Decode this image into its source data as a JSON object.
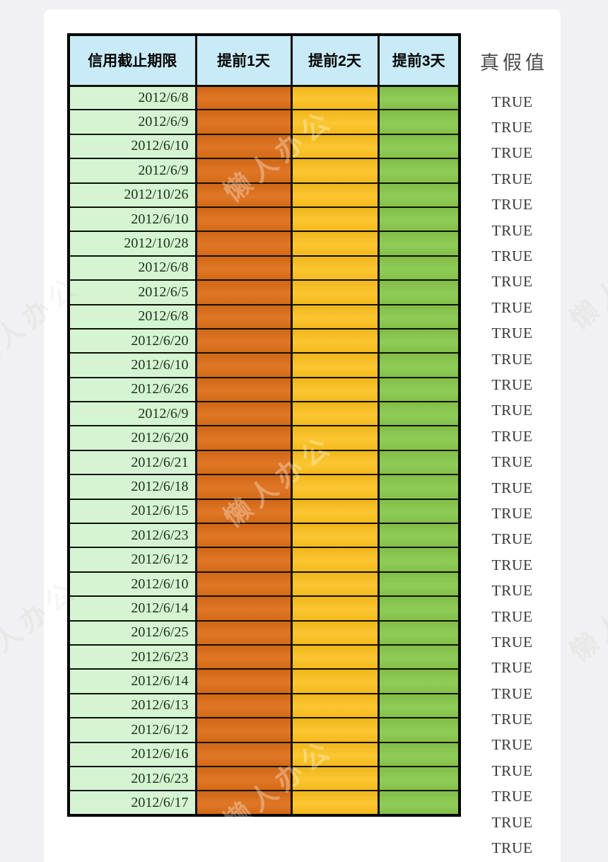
{
  "page": {
    "background_color": "#f1f1f3",
    "panel_color": "#ffffff"
  },
  "watermark": {
    "text": "懒人办公"
  },
  "colors": {
    "header_bg": "#c8ebf7",
    "date_col_bg": "#d5f5d2",
    "advance1_bg": "#dd6d16",
    "advance2_bg": "#fcc01c",
    "advance3_bg": "#87c74a",
    "grid_border": "#101008",
    "date_text": "#17321c",
    "truth_text": "#383838",
    "outside_header_text": "#4a4a4a"
  },
  "table": {
    "headers": [
      {
        "label": "信用截止期限"
      },
      {
        "label": "提前1天"
      },
      {
        "label": "提前2天"
      },
      {
        "label": "提前3天"
      }
    ],
    "outside_header": "真假值",
    "rows": [
      {
        "date": "2012/6/8",
        "advance1": "",
        "advance2": "",
        "advance3": "",
        "truth": "TRUE"
      },
      {
        "date": "2012/6/9",
        "advance1": "",
        "advance2": "",
        "advance3": "",
        "truth": "TRUE"
      },
      {
        "date": "2012/6/10",
        "advance1": "",
        "advance2": "",
        "advance3": "",
        "truth": "TRUE"
      },
      {
        "date": "2012/6/9",
        "advance1": "",
        "advance2": "",
        "advance3": "",
        "truth": "TRUE"
      },
      {
        "date": "2012/10/26",
        "advance1": "",
        "advance2": "",
        "advance3": "",
        "truth": "TRUE"
      },
      {
        "date": "2012/6/10",
        "advance1": "",
        "advance2": "",
        "advance3": "",
        "truth": "TRUE"
      },
      {
        "date": "2012/10/28",
        "advance1": "",
        "advance2": "",
        "advance3": "",
        "truth": "TRUE"
      },
      {
        "date": "2012/6/8",
        "advance1": "",
        "advance2": "",
        "advance3": "",
        "truth": "TRUE"
      },
      {
        "date": "2012/6/5",
        "advance1": "",
        "advance2": "",
        "advance3": "",
        "truth": "TRUE"
      },
      {
        "date": "2012/6/8",
        "advance1": "",
        "advance2": "",
        "advance3": "",
        "truth": "TRUE"
      },
      {
        "date": "2012/6/20",
        "advance1": "",
        "advance2": "",
        "advance3": "",
        "truth": "TRUE"
      },
      {
        "date": "2012/6/10",
        "advance1": "",
        "advance2": "",
        "advance3": "",
        "truth": "TRUE"
      },
      {
        "date": "2012/6/26",
        "advance1": "",
        "advance2": "",
        "advance3": "",
        "truth": "TRUE"
      },
      {
        "date": "2012/6/9",
        "advance1": "",
        "advance2": "",
        "advance3": "",
        "truth": "TRUE"
      },
      {
        "date": "2012/6/20",
        "advance1": "",
        "advance2": "",
        "advance3": "",
        "truth": "TRUE"
      },
      {
        "date": "2012/6/21",
        "advance1": "",
        "advance2": "",
        "advance3": "",
        "truth": "TRUE"
      },
      {
        "date": "2012/6/18",
        "advance1": "",
        "advance2": "",
        "advance3": "",
        "truth": "TRUE"
      },
      {
        "date": "2012/6/15",
        "advance1": "",
        "advance2": "",
        "advance3": "",
        "truth": "TRUE"
      },
      {
        "date": "2012/6/23",
        "advance1": "",
        "advance2": "",
        "advance3": "",
        "truth": "TRUE"
      },
      {
        "date": "2012/6/12",
        "advance1": "",
        "advance2": "",
        "advance3": "",
        "truth": "TRUE"
      },
      {
        "date": "2012/6/10",
        "advance1": "",
        "advance2": "",
        "advance3": "",
        "truth": "TRUE"
      },
      {
        "date": "2012/6/14",
        "advance1": "",
        "advance2": "",
        "advance3": "",
        "truth": "TRUE"
      },
      {
        "date": "2012/6/25",
        "advance1": "",
        "advance2": "",
        "advance3": "",
        "truth": "TRUE"
      },
      {
        "date": "2012/6/23",
        "advance1": "",
        "advance2": "",
        "advance3": "",
        "truth": "TRUE"
      },
      {
        "date": "2012/6/14",
        "advance1": "",
        "advance2": "",
        "advance3": "",
        "truth": "TRUE"
      },
      {
        "date": "2012/6/13",
        "advance1": "",
        "advance2": "",
        "advance3": "",
        "truth": "TRUE"
      },
      {
        "date": "2012/6/12",
        "advance1": "",
        "advance2": "",
        "advance3": "",
        "truth": "TRUE"
      },
      {
        "date": "2012/6/16",
        "advance1": "",
        "advance2": "",
        "advance3": "",
        "truth": "TRUE"
      },
      {
        "date": "2012/6/23",
        "advance1": "",
        "advance2": "",
        "advance3": "",
        "truth": "TRUE"
      },
      {
        "date": "2012/6/17",
        "advance1": "",
        "advance2": "",
        "advance3": "",
        "truth": "TRUE"
      }
    ]
  }
}
